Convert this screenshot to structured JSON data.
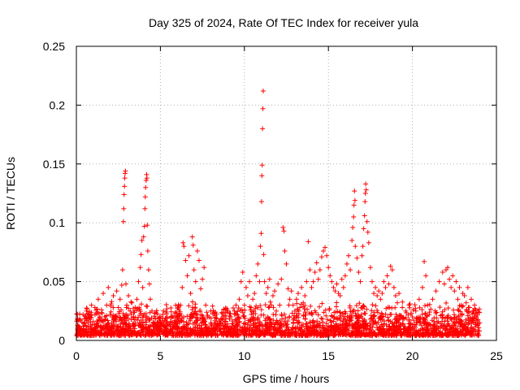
{
  "chart_data": {
    "type": "scatter",
    "title": "Day 325 of 2024, Rate Of TEC Index for receiver yula",
    "xlabel": "GPS time / hours",
    "ylabel": "ROTI / TECUs",
    "xlim": [
      0,
      25
    ],
    "ylim": [
      0,
      0.25
    ],
    "xticks": [
      0,
      5,
      10,
      15,
      20,
      25
    ],
    "xtick_labels": [
      "0",
      "5",
      "10",
      "15",
      "20",
      "25"
    ],
    "yticks": [
      0,
      0.05,
      0.1,
      0.15,
      0.2,
      0.25
    ],
    "ytick_labels": [
      "0",
      "0.05",
      "0.1",
      "0.15",
      "0.2",
      "0.25"
    ],
    "grid": true,
    "marker": "+",
    "color": "#ff0000",
    "series": [
      {
        "name": "ROTI",
        "points": [
          [
            0.1,
            0.012
          ],
          [
            0.2,
            0.018
          ],
          [
            0.3,
            0.01
          ],
          [
            0.4,
            0.022
          ],
          [
            0.5,
            0.015
          ],
          [
            0.6,
            0.025
          ],
          [
            0.7,
            0.012
          ],
          [
            0.8,
            0.02
          ],
          [
            0.9,
            0.03
          ],
          [
            1.0,
            0.016
          ],
          [
            1.1,
            0.028
          ],
          [
            1.2,
            0.014
          ],
          [
            1.3,
            0.035
          ],
          [
            1.4,
            0.02
          ],
          [
            1.5,
            0.026
          ],
          [
            1.6,
            0.04
          ],
          [
            1.7,
            0.018
          ],
          [
            1.8,
            0.03
          ],
          [
            1.9,
            0.045
          ],
          [
            2.0,
            0.022
          ],
          [
            2.1,
            0.033
          ],
          [
            2.2,
            0.038
          ],
          [
            2.3,
            0.02
          ],
          [
            2.4,
            0.042
          ],
          [
            2.5,
            0.028
          ],
          [
            2.6,
            0.035
          ],
          [
            2.7,
            0.047
          ],
          [
            2.75,
            0.06
          ],
          [
            2.8,
            0.101
          ],
          [
            2.82,
            0.112
          ],
          [
            2.84,
            0.124
          ],
          [
            2.86,
            0.131
          ],
          [
            2.88,
            0.138
          ],
          [
            2.9,
            0.142
          ],
          [
            2.92,
            0.144
          ],
          [
            2.95,
            0.048
          ],
          [
            3.0,
            0.03
          ],
          [
            3.1,
            0.038
          ],
          [
            3.2,
            0.025
          ],
          [
            3.3,
            0.032
          ],
          [
            3.4,
            0.02
          ],
          [
            3.5,
            0.028
          ],
          [
            3.6,
            0.035
          ],
          [
            3.7,
            0.05
          ],
          [
            3.8,
            0.062
          ],
          [
            3.85,
            0.073
          ],
          [
            3.9,
            0.085
          ],
          [
            3.95,
            0.045
          ],
          [
            4.0,
            0.088
          ],
          [
            4.05,
            0.097
          ],
          [
            4.08,
            0.112
          ],
          [
            4.1,
            0.122
          ],
          [
            4.12,
            0.13
          ],
          [
            4.15,
            0.136
          ],
          [
            4.18,
            0.141
          ],
          [
            4.2,
            0.138
          ],
          [
            4.22,
            0.098
          ],
          [
            4.25,
            0.076
          ],
          [
            4.3,
            0.06
          ],
          [
            4.35,
            0.048
          ],
          [
            4.4,
            0.035
          ],
          [
            4.5,
            0.025
          ],
          [
            4.6,
            0.015
          ],
          [
            4.8,
            0.012
          ],
          [
            5.0,
            0.01
          ],
          [
            5.2,
            0.014
          ],
          [
            5.4,
            0.012
          ],
          [
            5.6,
            0.016
          ],
          [
            5.8,
            0.02
          ],
          [
            6.0,
            0.018
          ],
          [
            6.1,
            0.026
          ],
          [
            6.2,
            0.03
          ],
          [
            6.3,
            0.045
          ],
          [
            6.35,
            0.083
          ],
          [
            6.4,
            0.08
          ],
          [
            6.5,
            0.068
          ],
          [
            6.6,
            0.055
          ],
          [
            6.7,
            0.072
          ],
          [
            6.8,
            0.04
          ],
          [
            6.9,
            0.088
          ],
          [
            6.95,
            0.081
          ],
          [
            7.0,
            0.06
          ],
          [
            7.1,
            0.05
          ],
          [
            7.2,
            0.076
          ],
          [
            7.3,
            0.068
          ],
          [
            7.4,
            0.044
          ],
          [
            7.5,
            0.052
          ],
          [
            7.6,
            0.062
          ],
          [
            7.7,
            0.03
          ],
          [
            7.8,
            0.02
          ],
          [
            8.0,
            0.015
          ],
          [
            8.2,
            0.01
          ],
          [
            8.4,
            0.012
          ],
          [
            8.6,
            0.018
          ],
          [
            8.8,
            0.01
          ],
          [
            9.0,
            0.014
          ],
          [
            9.2,
            0.02
          ],
          [
            9.4,
            0.025
          ],
          [
            9.5,
            0.03
          ],
          [
            9.6,
            0.022
          ],
          [
            9.7,
            0.035
          ],
          [
            9.8,
            0.05
          ],
          [
            9.9,
            0.058
          ],
          [
            10.0,
            0.03
          ],
          [
            10.1,
            0.045
          ],
          [
            10.2,
            0.038
          ],
          [
            10.3,
            0.05
          ],
          [
            10.4,
            0.028
          ],
          [
            10.5,
            0.035
          ],
          [
            10.6,
            0.04
          ],
          [
            10.7,
            0.055
          ],
          [
            10.8,
            0.065
          ],
          [
            10.9,
            0.05
          ],
          [
            10.95,
            0.08
          ],
          [
            11.0,
            0.091
          ],
          [
            11.02,
            0.118
          ],
          [
            11.04,
            0.14
          ],
          [
            11.06,
            0.149
          ],
          [
            11.08,
            0.18
          ],
          [
            11.1,
            0.197
          ],
          [
            11.12,
            0.212
          ],
          [
            11.15,
            0.073
          ],
          [
            11.2,
            0.05
          ],
          [
            11.3,
            0.04
          ],
          [
            11.4,
            0.045
          ],
          [
            11.5,
            0.052
          ],
          [
            11.6,
            0.03
          ],
          [
            11.7,
            0.038
          ],
          [
            11.8,
            0.042
          ],
          [
            11.9,
            0.025
          ],
          [
            12.0,
            0.048
          ],
          [
            12.1,
            0.03
          ],
          [
            12.2,
            0.052
          ],
          [
            12.3,
            0.096
          ],
          [
            12.35,
            0.093
          ],
          [
            12.4,
            0.076
          ],
          [
            12.5,
            0.065
          ],
          [
            12.6,
            0.044
          ],
          [
            12.7,
            0.035
          ],
          [
            12.8,
            0.042
          ],
          [
            12.9,
            0.03
          ],
          [
            13.0,
            0.025
          ],
          [
            13.1,
            0.035
          ],
          [
            13.2,
            0.04
          ],
          [
            13.3,
            0.028
          ],
          [
            13.4,
            0.045
          ],
          [
            13.5,
            0.032
          ],
          [
            13.6,
            0.038
          ],
          [
            13.7,
            0.05
          ],
          [
            13.8,
            0.084
          ],
          [
            13.9,
            0.06
          ],
          [
            14.0,
            0.045
          ],
          [
            14.1,
            0.05
          ],
          [
            14.2,
            0.058
          ],
          [
            14.3,
            0.066
          ],
          [
            14.4,
            0.052
          ],
          [
            14.5,
            0.06
          ],
          [
            14.6,
            0.071
          ],
          [
            14.7,
            0.076
          ],
          [
            14.8,
            0.079
          ],
          [
            14.9,
            0.072
          ],
          [
            15.0,
            0.062
          ],
          [
            15.1,
            0.055
          ],
          [
            15.2,
            0.05
          ],
          [
            15.3,
            0.045
          ],
          [
            15.4,
            0.042
          ],
          [
            15.5,
            0.048
          ],
          [
            15.6,
            0.04
          ],
          [
            15.7,
            0.038
          ],
          [
            15.8,
            0.052
          ],
          [
            15.9,
            0.045
          ],
          [
            16.0,
            0.055
          ],
          [
            16.1,
            0.065
          ],
          [
            16.2,
            0.072
          ],
          [
            16.3,
            0.06
          ],
          [
            16.4,
            0.085
          ],
          [
            16.45,
            0.096
          ],
          [
            16.5,
            0.105
          ],
          [
            16.52,
            0.115
          ],
          [
            16.55,
            0.127
          ],
          [
            16.58,
            0.119
          ],
          [
            16.6,
            0.08
          ],
          [
            16.7,
            0.07
          ],
          [
            16.8,
            0.058
          ],
          [
            16.9,
            0.05
          ],
          [
            17.0,
            0.072
          ],
          [
            17.05,
            0.08
          ],
          [
            17.1,
            0.095
          ],
          [
            17.15,
            0.106
          ],
          [
            17.18,
            0.118
          ],
          [
            17.2,
            0.125
          ],
          [
            17.22,
            0.133
          ],
          [
            17.25,
            0.128
          ],
          [
            17.3,
            0.101
          ],
          [
            17.35,
            0.092
          ],
          [
            17.4,
            0.083
          ],
          [
            17.5,
            0.062
          ],
          [
            17.6,
            0.05
          ],
          [
            17.7,
            0.04
          ],
          [
            17.8,
            0.045
          ],
          [
            17.9,
            0.038
          ],
          [
            18.0,
            0.042
          ],
          [
            18.1,
            0.035
          ],
          [
            18.2,
            0.04
          ],
          [
            18.3,
            0.05
          ],
          [
            18.4,
            0.045
          ],
          [
            18.5,
            0.055
          ],
          [
            18.6,
            0.048
          ],
          [
            18.7,
            0.063
          ],
          [
            18.8,
            0.06
          ],
          [
            18.9,
            0.045
          ],
          [
            19.0,
            0.038
          ],
          [
            19.1,
            0.032
          ],
          [
            19.2,
            0.04
          ],
          [
            19.4,
            0.028
          ],
          [
            19.6,
            0.025
          ],
          [
            19.8,
            0.03
          ],
          [
            20.0,
            0.02
          ],
          [
            20.2,
            0.025
          ],
          [
            20.4,
            0.035
          ],
          [
            20.6,
            0.045
          ],
          [
            20.7,
            0.067
          ],
          [
            20.8,
            0.055
          ],
          [
            20.9,
            0.03
          ],
          [
            21.0,
            0.022
          ],
          [
            21.2,
            0.035
          ],
          [
            21.4,
            0.042
          ],
          [
            21.6,
            0.05
          ],
          [
            21.8,
            0.058
          ],
          [
            21.9,
            0.048
          ],
          [
            22.0,
            0.06
          ],
          [
            22.1,
            0.062
          ],
          [
            22.2,
            0.052
          ],
          [
            22.3,
            0.045
          ],
          [
            22.4,
            0.055
          ],
          [
            22.5,
            0.042
          ],
          [
            22.6,
            0.05
          ],
          [
            22.7,
            0.035
          ],
          [
            22.8,
            0.045
          ],
          [
            22.9,
            0.03
          ],
          [
            23.0,
            0.04
          ],
          [
            23.1,
            0.038
          ],
          [
            23.2,
            0.032
          ],
          [
            23.3,
            0.045
          ],
          [
            23.4,
            0.028
          ],
          [
            23.5,
            0.035
          ],
          [
            23.6,
            0.025
          ],
          [
            23.7,
            0.03
          ],
          [
            23.8,
            0.02
          ],
          [
            23.9,
            0.025
          ],
          [
            24.0,
            0.015
          ]
        ]
      }
    ]
  }
}
